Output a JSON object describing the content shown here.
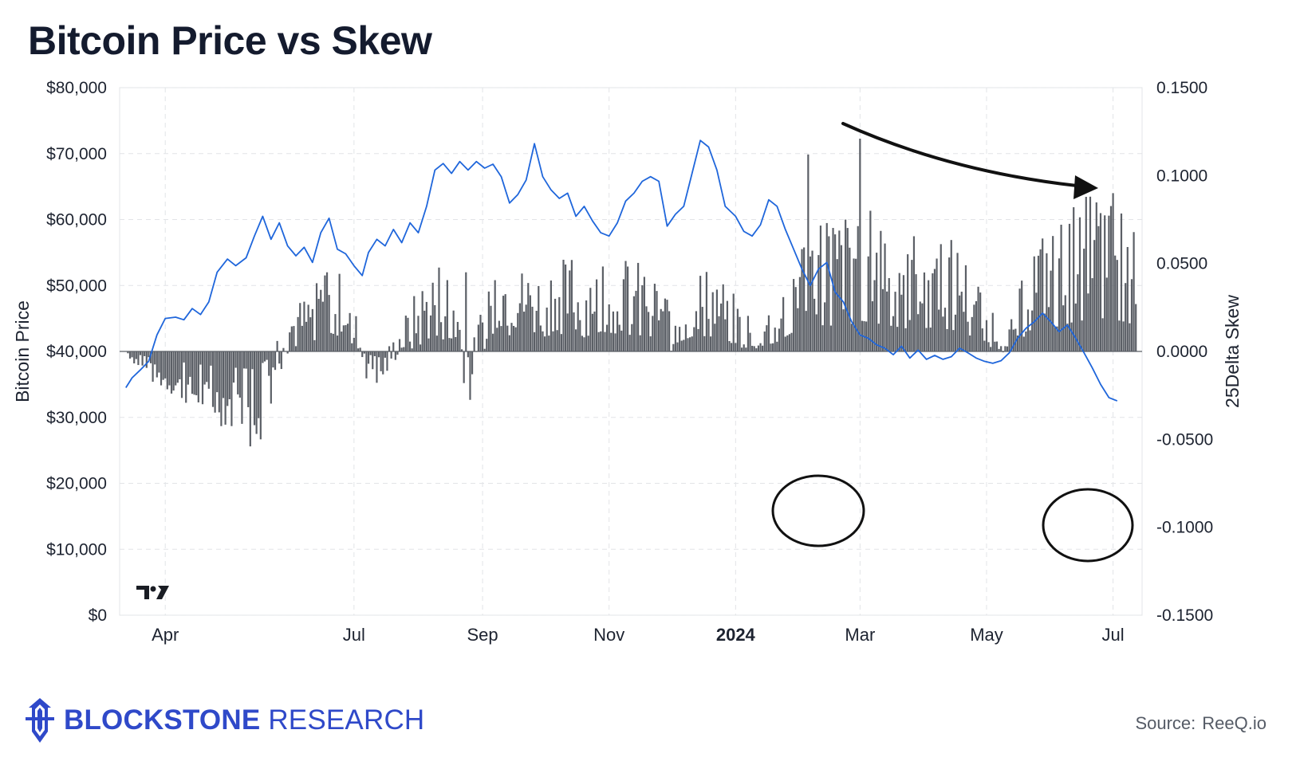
{
  "title": "Bitcoin Price vs Skew",
  "brand": {
    "name_bold": "BLOCKSTONE",
    "name_rest": "RESEARCH"
  },
  "source": {
    "label": "Source:",
    "value": "ReeQ.io"
  },
  "watermark_icon": "tradingview-icon",
  "colors": {
    "price_line": "#1f66db",
    "skew_bars": "#5b5f66",
    "title": "#141b2e",
    "brand": "#2f49c9"
  },
  "chart_data": {
    "type": "bar+line",
    "grid": true,
    "xlabel": "",
    "x_ticks": [
      {
        "label": "Apr",
        "date": "2023-04-01"
      },
      {
        "label": "Jul",
        "date": "2023-07-01"
      },
      {
        "label": "Sep",
        "date": "2023-09-01"
      },
      {
        "label": "Nov",
        "date": "2023-11-01"
      },
      {
        "label": "2024",
        "date": "2024-01-01",
        "bold": true
      },
      {
        "label": "Mar",
        "date": "2024-03-01"
      },
      {
        "label": "May",
        "date": "2024-05-01"
      },
      {
        "label": "Jul",
        "date": "2024-07-01"
      }
    ],
    "x_range": [
      "2023-03-10",
      "2024-07-15"
    ],
    "y_left": {
      "label": "Bitcoin Price",
      "range": [
        0,
        80000
      ],
      "ticks": [
        "$0",
        "$10,000",
        "$20,000",
        "$30,000",
        "$40,000",
        "$50,000",
        "$60,000",
        "$70,000",
        "$80,000"
      ]
    },
    "y_right": {
      "label": "25Delta Skew",
      "range": [
        -0.15,
        0.15
      ],
      "ticks": [
        "-0.1500",
        "-0.1000",
        "-0.0500",
        "0.0000",
        "0.0500",
        "0.1000",
        "0.1500"
      ]
    },
    "series": [
      {
        "name": "Bitcoin Price",
        "type": "line",
        "axis": "left",
        "points": [
          [
            "2023-03-13",
            34500
          ],
          [
            "2023-03-16",
            36000
          ],
          [
            "2023-03-20",
            37200
          ],
          [
            "2023-03-24",
            38500
          ],
          [
            "2023-03-28",
            42500
          ],
          [
            "2023-04-01",
            45000
          ],
          [
            "2023-04-06",
            45200
          ],
          [
            "2023-04-10",
            44800
          ],
          [
            "2023-04-14",
            46500
          ],
          [
            "2023-04-18",
            45600
          ],
          [
            "2023-04-22",
            47500
          ],
          [
            "2023-04-26",
            52000
          ],
          [
            "2023-05-01",
            54000
          ],
          [
            "2023-05-05",
            53000
          ],
          [
            "2023-05-10",
            54200
          ],
          [
            "2023-05-14",
            57500
          ],
          [
            "2023-05-18",
            60500
          ],
          [
            "2023-05-22",
            57000
          ],
          [
            "2023-05-26",
            59500
          ],
          [
            "2023-05-30",
            56000
          ],
          [
            "2023-06-03",
            54500
          ],
          [
            "2023-06-07",
            55800
          ],
          [
            "2023-06-11",
            53500
          ],
          [
            "2023-06-15",
            58000
          ],
          [
            "2023-06-19",
            60200
          ],
          [
            "2023-06-23",
            55500
          ],
          [
            "2023-06-27",
            54800
          ],
          [
            "2023-07-01",
            53000
          ],
          [
            "2023-07-05",
            51500
          ],
          [
            "2023-07-08",
            55000
          ],
          [
            "2023-07-12",
            57000
          ],
          [
            "2023-07-16",
            56000
          ],
          [
            "2023-07-20",
            58500
          ],
          [
            "2023-07-24",
            56500
          ],
          [
            "2023-07-28",
            59500
          ],
          [
            "2023-08-01",
            58000
          ],
          [
            "2023-08-05",
            62000
          ],
          [
            "2023-08-09",
            67500
          ],
          [
            "2023-08-13",
            68500
          ],
          [
            "2023-08-17",
            67000
          ],
          [
            "2023-08-21",
            68800
          ],
          [
            "2023-08-25",
            67500
          ],
          [
            "2023-08-29",
            68800
          ],
          [
            "2023-09-02",
            67800
          ],
          [
            "2023-09-06",
            68400
          ],
          [
            "2023-09-10",
            66500
          ],
          [
            "2023-09-14",
            62500
          ],
          [
            "2023-09-18",
            63800
          ],
          [
            "2023-09-22",
            66000
          ],
          [
            "2023-09-26",
            71500
          ],
          [
            "2023-09-30",
            66500
          ],
          [
            "2023-10-04",
            64500
          ],
          [
            "2023-10-08",
            63200
          ],
          [
            "2023-10-12",
            64000
          ],
          [
            "2023-10-16",
            60500
          ],
          [
            "2023-10-20",
            62000
          ],
          [
            "2023-10-24",
            59800
          ],
          [
            "2023-10-28",
            58000
          ],
          [
            "2023-11-01",
            57500
          ],
          [
            "2023-11-05",
            59500
          ],
          [
            "2023-11-09",
            62800
          ],
          [
            "2023-11-13",
            64000
          ],
          [
            "2023-11-17",
            65800
          ],
          [
            "2023-11-21",
            66500
          ],
          [
            "2023-11-25",
            65800
          ],
          [
            "2023-11-29",
            59000
          ],
          [
            "2023-12-03",
            60800
          ],
          [
            "2023-12-07",
            62000
          ],
          [
            "2023-12-11",
            67000
          ],
          [
            "2023-12-15",
            72000
          ],
          [
            "2023-12-19",
            71000
          ],
          [
            "2023-12-23",
            67500
          ],
          [
            "2023-12-27",
            62000
          ],
          [
            "2024-01-01",
            60500
          ],
          [
            "2024-01-05",
            58200
          ],
          [
            "2024-01-09",
            57500
          ],
          [
            "2024-01-13",
            59200
          ],
          [
            "2024-01-17",
            63000
          ],
          [
            "2024-01-21",
            62000
          ],
          [
            "2024-01-25",
            58500
          ],
          [
            "2024-01-29",
            55500
          ],
          [
            "2024-02-02",
            52500
          ],
          [
            "2024-02-06",
            50000
          ],
          [
            "2024-02-10",
            52500
          ],
          [
            "2024-02-14",
            53500
          ],
          [
            "2024-02-18",
            49000
          ],
          [
            "2024-02-22",
            47500
          ],
          [
            "2024-02-26",
            44500
          ],
          [
            "2024-03-01",
            42500
          ],
          [
            "2024-03-05",
            42000
          ],
          [
            "2024-03-09",
            41000
          ],
          [
            "2024-03-13",
            40500
          ],
          [
            "2024-03-17",
            39500
          ],
          [
            "2024-03-21",
            40800
          ],
          [
            "2024-03-25",
            39000
          ],
          [
            "2024-03-29",
            40200
          ],
          [
            "2024-04-02",
            38800
          ],
          [
            "2024-04-06",
            39400
          ],
          [
            "2024-04-10",
            38800
          ],
          [
            "2024-04-14",
            39200
          ],
          [
            "2024-04-18",
            40500
          ],
          [
            "2024-04-22",
            39800
          ],
          [
            "2024-04-26",
            39000
          ],
          [
            "2024-04-30",
            38500
          ],
          [
            "2024-05-04",
            38200
          ],
          [
            "2024-05-08",
            38600
          ],
          [
            "2024-05-12",
            39800
          ],
          [
            "2024-05-16",
            42000
          ],
          [
            "2024-05-20",
            43500
          ],
          [
            "2024-05-24",
            44500
          ],
          [
            "2024-05-28",
            45800
          ],
          [
            "2024-06-01",
            44500
          ],
          [
            "2024-06-05",
            43000
          ],
          [
            "2024-06-09",
            44000
          ],
          [
            "2024-06-13",
            42000
          ],
          [
            "2024-06-17",
            39800
          ],
          [
            "2024-06-21",
            37500
          ],
          [
            "2024-06-25",
            35000
          ],
          [
            "2024-06-29",
            33000
          ],
          [
            "2024-07-03",
            32500
          ]
        ]
      },
      {
        "name": "25Delta Skew",
        "type": "bar",
        "axis": "right"
      }
    ]
  }
}
